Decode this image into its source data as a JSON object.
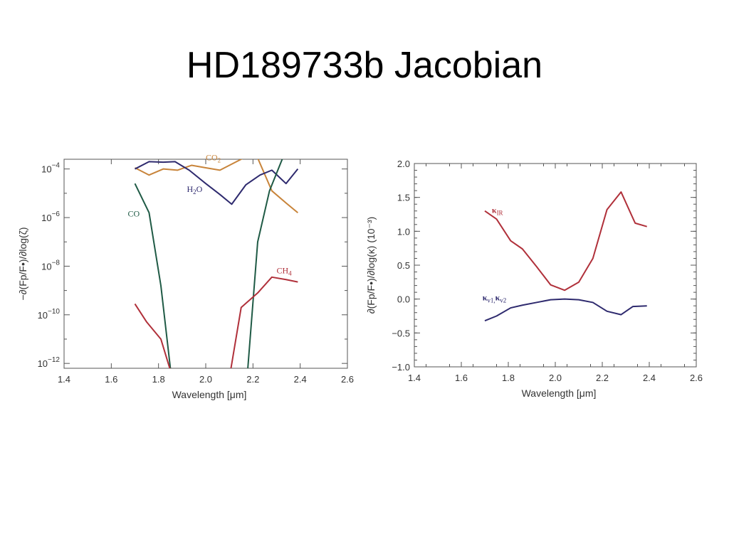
{
  "title": "HD189733b Jacobian",
  "chart_data": [
    {
      "type": "line",
      "yscale": "log",
      "xlabel": "Wavelength [μm]",
      "ylabel": "−∂(Fp/F•)/∂log(ζ)",
      "xlim": [
        1.4,
        2.6
      ],
      "ylim_exp": [
        -12.2,
        -3.6
      ],
      "xticks": [
        "1.4",
        "1.6",
        "1.8",
        "2.0",
        "2.2",
        "2.4",
        "2.6"
      ],
      "yticks": [
        {
          "base": "10",
          "exp": "−4",
          "value": -4
        },
        {
          "base": "10",
          "exp": "−6",
          "value": -6
        },
        {
          "base": "10",
          "exp": "−8",
          "value": -8
        },
        {
          "base": "10",
          "exp": "−10",
          "value": -10
        },
        {
          "base": "10",
          "exp": "−12",
          "value": -12
        }
      ],
      "grid": false,
      "series": [
        {
          "name": "CO2",
          "label_main": "CO",
          "label_sub": "2",
          "color": "#c8843a",
          "x": [
            1.7,
            1.76,
            1.82,
            1.88,
            1.94,
            2.0,
            2.06,
            2.12,
            2.17,
            2.22,
            2.28,
            2.34,
            2.39
          ],
          "log_y": [
            -3.95,
            -4.25,
            -4.0,
            -4.05,
            -3.85,
            -3.95,
            -4.05,
            -3.75,
            -3.5,
            -3.55,
            -4.9,
            -5.4,
            -5.8
          ],
          "label_pos": [
            2.0,
            -3.65
          ]
        },
        {
          "name": "H2O",
          "label_main": "H",
          "label_sub": "2",
          "label_rest": "O",
          "color": "#2e2a6e",
          "x": [
            1.7,
            1.76,
            1.82,
            1.87,
            1.93,
            2.0,
            2.06,
            2.11,
            2.17,
            2.23,
            2.28,
            2.34,
            2.39
          ],
          "log_y": [
            -4.0,
            -3.7,
            -3.72,
            -3.7,
            -4.05,
            -4.6,
            -5.05,
            -5.45,
            -4.65,
            -4.25,
            -4.05,
            -4.6,
            -4.0
          ],
          "label_pos": [
            1.92,
            -4.95
          ]
        },
        {
          "name": "CO",
          "label_main": "CO",
          "color": "#1f5a45",
          "x": [
            1.7,
            1.76,
            1.81,
            1.855,
            1.93,
            2.03,
            2.11,
            2.175,
            2.22,
            2.27,
            2.33,
            2.39
          ],
          "log_y": [
            -4.6,
            -5.8,
            -8.8,
            -12.6,
            -12.6,
            -12.6,
            -12.6,
            -12.6,
            -7.0,
            -4.9,
            -3.45,
            -3.5
          ],
          "label_pos": [
            1.67,
            -5.95
          ]
        },
        {
          "name": "CH4",
          "label_main": "CH",
          "label_sub": "4",
          "color": "#b0303a",
          "x": [
            1.7,
            1.75,
            1.81,
            1.86,
            2.0,
            2.1,
            2.15,
            2.22,
            2.28,
            2.34,
            2.39
          ],
          "log_y": [
            -9.55,
            -10.3,
            -11.0,
            -12.6,
            -12.6,
            -12.6,
            -9.7,
            -9.1,
            -8.45,
            -8.55,
            -8.65
          ],
          "label_pos": [
            2.3,
            -8.3
          ]
        }
      ]
    },
    {
      "type": "line",
      "xlabel": "Wavelength [μm]",
      "ylabel": "∂(Fp/F•)/∂log(κ)  (10⁻³)",
      "xlim": [
        1.4,
        2.6
      ],
      "ylim": [
        -1.0,
        2.0
      ],
      "xticks": [
        "1.4",
        "1.6",
        "1.8",
        "2.0",
        "2.2",
        "2.4",
        "2.6"
      ],
      "yticks": [
        "2.0",
        "1.5",
        "1.0",
        "0.5",
        "0.0",
        "−0.5",
        "−1.0"
      ],
      "grid": false,
      "series": [
        {
          "name": "κIR",
          "label_main": "κ",
          "label_sub": "IR",
          "color": "#b0303a",
          "x": [
            1.7,
            1.75,
            1.81,
            1.86,
            1.92,
            1.98,
            2.04,
            2.1,
            2.16,
            2.22,
            2.28,
            2.34,
            2.39
          ],
          "y": [
            1.3,
            1.18,
            0.86,
            0.74,
            0.48,
            0.21,
            0.13,
            0.25,
            0.6,
            1.32,
            1.58,
            1.12,
            1.07
          ],
          "label_pos": [
            1.73,
            1.27
          ]
        },
        {
          "name": "κv1, κv2",
          "label_main": "κ",
          "label_sub": "v1,",
          "label_rest": "κ",
          "label_sub2": "v2",
          "color": "#2e2a6e",
          "x": [
            1.7,
            1.75,
            1.81,
            1.86,
            1.92,
            1.98,
            2.04,
            2.1,
            2.16,
            2.22,
            2.28,
            2.33,
            2.39
          ],
          "y": [
            -0.32,
            -0.25,
            -0.13,
            -0.09,
            -0.05,
            -0.01,
            0.0,
            -0.01,
            -0.05,
            -0.18,
            -0.23,
            -0.11,
            -0.1
          ],
          "label_pos": [
            1.69,
            -0.02
          ]
        }
      ]
    }
  ]
}
